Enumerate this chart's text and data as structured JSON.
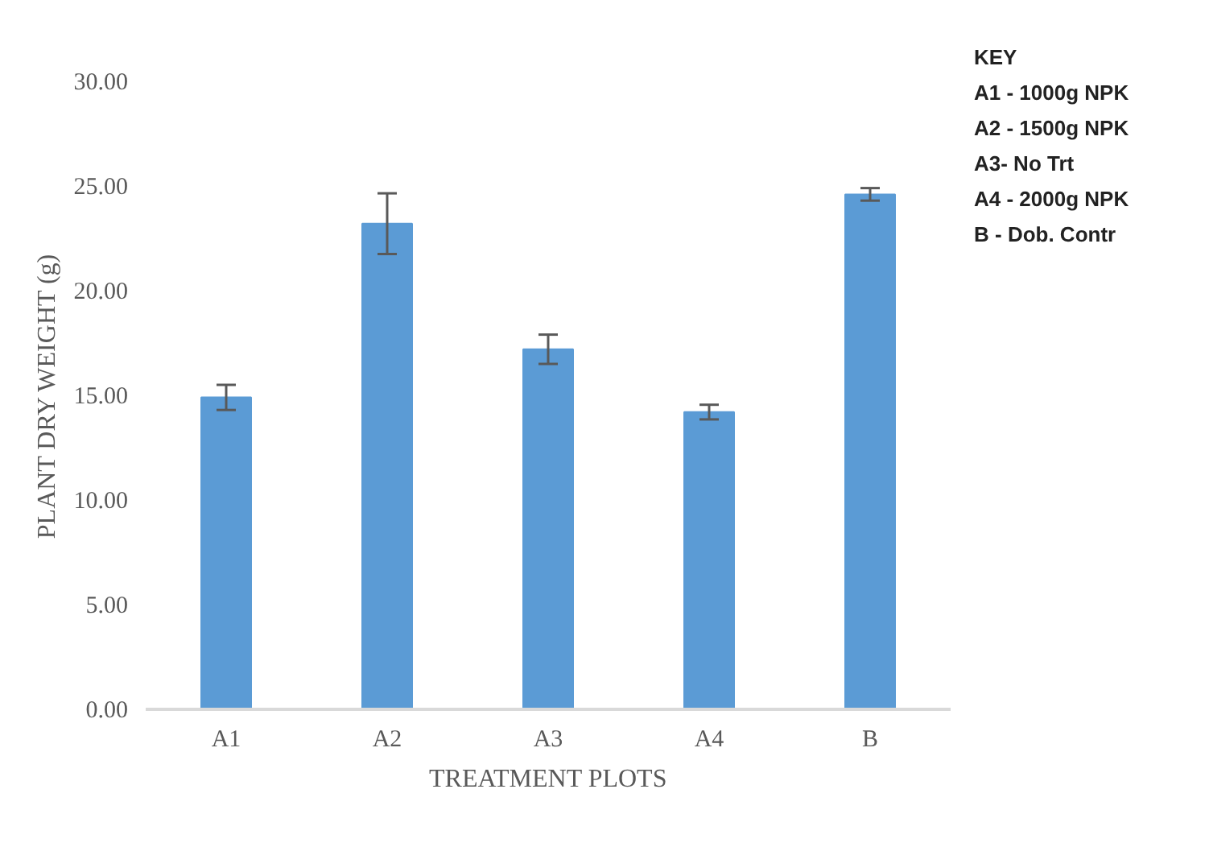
{
  "chart_data": {
    "type": "bar",
    "xlabel": "TREATMENT PLOTS",
    "ylabel": "PLANT DRY WEIGHT (g)",
    "categories": [
      "A1",
      "A2",
      "A3",
      "A4",
      "B"
    ],
    "values": [
      14.9,
      23.2,
      17.2,
      14.2,
      24.6
    ],
    "errors": [
      0.6,
      1.45,
      0.7,
      0.35,
      0.3
    ],
    "color": "#5b9bd5",
    "ylim": [
      0,
      30
    ],
    "yticks": [
      {
        "value": 0,
        "label": "0.00"
      },
      {
        "value": 5,
        "label": "5.00"
      },
      {
        "value": 10,
        "label": "10.00"
      },
      {
        "value": 15,
        "label": "15.00"
      },
      {
        "value": 20,
        "label": "20.00"
      },
      {
        "value": 25,
        "label": "25.00"
      },
      {
        "value": 30,
        "label": "30.00"
      }
    ],
    "grid": false,
    "annotations": [
      "KEY",
      "A1 - 1000g NPK",
      "A2 - 1500g NPK",
      "A3- No Trt",
      "A4 - 2000g NPK",
      "B - Dob. Contr"
    ]
  }
}
